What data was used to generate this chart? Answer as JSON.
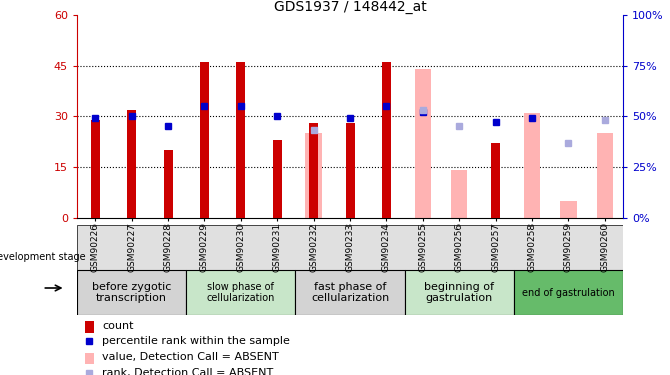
{
  "title": "GDS1937 / 148442_at",
  "samples": [
    "GSM90226",
    "GSM90227",
    "GSM90228",
    "GSM90229",
    "GSM90230",
    "GSM90231",
    "GSM90232",
    "GSM90233",
    "GSM90234",
    "GSM90255",
    "GSM90256",
    "GSM90257",
    "GSM90258",
    "GSM90259",
    "GSM90260"
  ],
  "red_bars": [
    29,
    32,
    20,
    46,
    46,
    23,
    28,
    28,
    46,
    null,
    null,
    22,
    null,
    null,
    null
  ],
  "pink_bars": [
    null,
    null,
    null,
    null,
    null,
    null,
    25,
    null,
    null,
    44,
    14,
    null,
    31,
    5,
    25
  ],
  "blue_squares_pct": [
    49,
    50,
    45,
    55,
    55,
    50,
    null,
    49,
    55,
    52,
    null,
    47,
    49,
    null,
    null
  ],
  "lightblue_squares_pct": [
    null,
    null,
    null,
    null,
    null,
    null,
    43,
    null,
    null,
    53,
    45,
    null,
    null,
    37,
    48
  ],
  "left_ylim": [
    0,
    60
  ],
  "right_ylim": [
    0,
    100
  ],
  "left_yticks": [
    0,
    15,
    30,
    45,
    60
  ],
  "right_yticks": [
    0,
    25,
    50,
    75,
    100
  ],
  "stages": [
    {
      "label": "before zygotic\ntranscription",
      "color": "#d3d3d3",
      "indices": [
        0,
        1,
        2
      ],
      "fontsize": 8
    },
    {
      "label": "slow phase of\ncellularization",
      "color": "#c8e6c9",
      "indices": [
        3,
        4,
        5
      ],
      "fontsize": 7
    },
    {
      "label": "fast phase of\ncellularization",
      "color": "#d3d3d3",
      "indices": [
        6,
        7,
        8
      ],
      "fontsize": 8
    },
    {
      "label": "beginning of\ngastrulation",
      "color": "#c8e6c9",
      "indices": [
        9,
        10,
        11
      ],
      "fontsize": 8
    },
    {
      "label": "end of gastrulation",
      "color": "#66bb6a",
      "indices": [
        12,
        13,
        14
      ],
      "fontsize": 7
    }
  ],
  "red_color": "#cc0000",
  "pink_color": "#ffb3b3",
  "blue_color": "#0000cc",
  "lightblue_color": "#aaaadd"
}
